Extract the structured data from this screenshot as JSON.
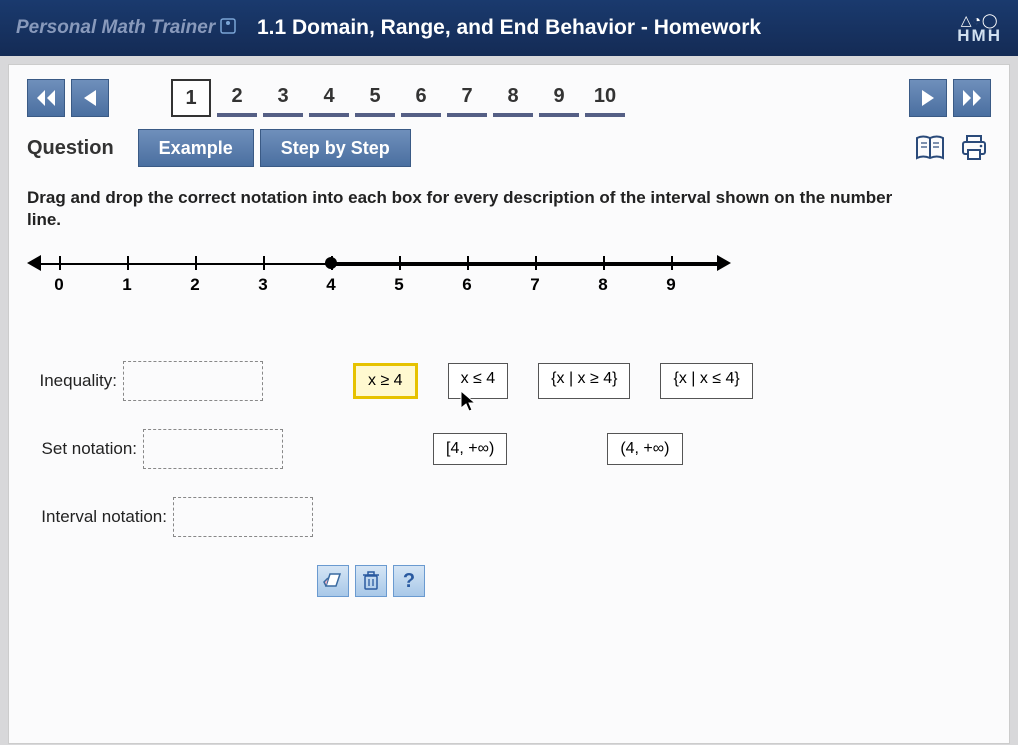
{
  "header": {
    "brand": "Personal Math Trainer",
    "title": "1.1 Domain, Range, and End Behavior - Homework",
    "logo_top": "△◔◯",
    "logo_bottom": "HMH"
  },
  "nav": {
    "pages": [
      "1",
      "2",
      "3",
      "4",
      "5",
      "6",
      "7",
      "8",
      "9",
      "10"
    ],
    "current": "1"
  },
  "tabs": {
    "label": "Question",
    "example": "Example",
    "stepbystep": "Step by Step"
  },
  "prompt": "Drag and drop the correct notation into each box for every description of the interval shown on the number line.",
  "numberline": {
    "ticks": [
      "0",
      "1",
      "2",
      "3",
      "4",
      "5",
      "6",
      "7",
      "8",
      "9"
    ],
    "closed_point": 4,
    "ray_start": 4,
    "ray_direction": "right"
  },
  "rows": {
    "inequality": "Inequality:",
    "setnotation": "Set notation:",
    "intervalnotation": "Interval notation:"
  },
  "choices": {
    "row1": {
      "a": "x ≥ 4",
      "b": "x ≤ 4",
      "c": "{x | x ≥ 4}",
      "d": "{x | x ≤ 4}"
    },
    "row2": {
      "a": "[4, +∞)",
      "b": "(4, +∞)"
    }
  },
  "style": {
    "header_bg": "#1a3a6e",
    "btn_bg": "#4a6fa0",
    "selected_border": "#e6c200",
    "selected_bg": "#fff9d0"
  }
}
